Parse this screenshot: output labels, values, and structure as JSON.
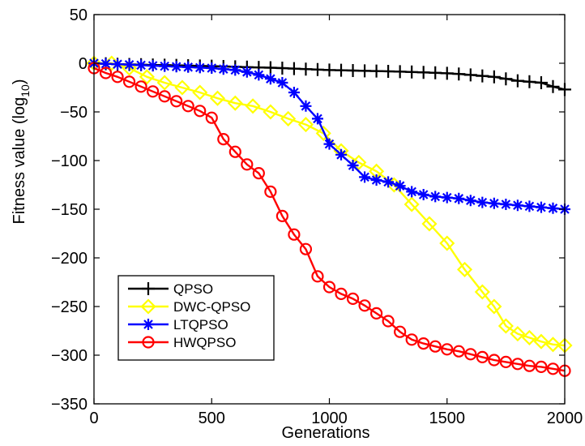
{
  "chart_data": {
    "type": "line",
    "title": "",
    "xlabel": "Generations",
    "ylabel": "Fitness value (log",
    "ylabel_subscript": "10",
    "ylabel_suffix": ")",
    "xlim": [
      0,
      2000
    ],
    "ylim": [
      -350,
      50
    ],
    "xticks": [
      0,
      500,
      1000,
      1500,
      2000
    ],
    "yticks": [
      50,
      0,
      -50,
      -100,
      -150,
      -200,
      -250,
      -300,
      -350
    ],
    "grid": false,
    "legend_placement": "lower-left",
    "series": [
      {
        "name": "QPSO",
        "color": "#000000",
        "marker": "plus",
        "x": [
          0,
          50,
          100,
          150,
          200,
          250,
          300,
          350,
          400,
          450,
          500,
          550,
          600,
          650,
          700,
          750,
          800,
          850,
          900,
          950,
          1000,
          1050,
          1100,
          1150,
          1200,
          1250,
          1300,
          1350,
          1400,
          1450,
          1500,
          1550,
          1600,
          1650,
          1700,
          1750,
          1800,
          1850,
          1900,
          1950,
          2000
        ],
        "y": [
          0,
          -0.5,
          -1,
          -1.2,
          -1.5,
          -1.8,
          -2,
          -2.2,
          -2.5,
          -2.8,
          -3,
          -3.3,
          -3.6,
          -4,
          -4.3,
          -4.6,
          -5,
          -5.5,
          -6,
          -6.5,
          -7,
          -7.2,
          -7.5,
          -7.8,
          -8,
          -8.3,
          -8.6,
          -9,
          -9.4,
          -9.8,
          -10.3,
          -11,
          -12,
          -13,
          -14,
          -16,
          -18,
          -19,
          -20,
          -24,
          -27
        ]
      },
      {
        "name": "DWC-QPSO",
        "color": "#ffff00",
        "marker": "diamond",
        "x": [
          0,
          75,
          150,
          225,
          300,
          375,
          450,
          525,
          600,
          675,
          750,
          825,
          900,
          975,
          1050,
          1125,
          1200,
          1275,
          1350,
          1425,
          1500,
          1575,
          1650,
          1700,
          1750,
          1800,
          1850,
          1900,
          1950,
          2000
        ],
        "y": [
          0,
          0,
          -5,
          -14,
          -20,
          -25,
          -30,
          -36,
          -41,
          -44,
          -50,
          -57,
          -63,
          -72,
          -90,
          -102,
          -111,
          -125,
          -145,
          -165,
          -185,
          -212,
          -235,
          -250,
          -270,
          -278,
          -282,
          -286,
          -289,
          -290
        ]
      },
      {
        "name": "LTQPSO",
        "color": "#0000ff",
        "marker": "star",
        "x": [
          0,
          50,
          100,
          150,
          200,
          250,
          300,
          350,
          400,
          450,
          500,
          550,
          600,
          650,
          700,
          750,
          800,
          850,
          900,
          950,
          1000,
          1050,
          1100,
          1150,
          1200,
          1250,
          1300,
          1350,
          1400,
          1450,
          1500,
          1550,
          1600,
          1650,
          1700,
          1750,
          1800,
          1850,
          1900,
          1950,
          2000
        ],
        "y": [
          0,
          -0.5,
          -1,
          -1.5,
          -2,
          -2.5,
          -3,
          -3.5,
          -4,
          -4.5,
          -5,
          -6,
          -7,
          -9,
          -12,
          -16,
          -20,
          -30,
          -44,
          -57,
          -83,
          -94,
          -105,
          -117,
          -120,
          -122,
          -126,
          -132,
          -135,
          -137,
          -138,
          -139,
          -141,
          -143,
          -144,
          -145,
          -146,
          -147,
          -148,
          -149,
          -150
        ]
      },
      {
        "name": "HWQPSO",
        "color": "#ff0000",
        "marker": "circle",
        "x": [
          0,
          50,
          100,
          150,
          200,
          250,
          300,
          350,
          400,
          450,
          500,
          550,
          600,
          650,
          700,
          750,
          800,
          850,
          900,
          950,
          1000,
          1050,
          1100,
          1150,
          1200,
          1250,
          1300,
          1350,
          1400,
          1450,
          1500,
          1550,
          1600,
          1650,
          1700,
          1750,
          1800,
          1850,
          1900,
          1950,
          2000
        ],
        "y": [
          -5,
          -10,
          -14,
          -19,
          -24,
          -29,
          -34,
          -39,
          -44,
          -49,
          -56,
          -78,
          -91,
          -104,
          -113,
          -132,
          -157,
          -176,
          -191,
          -219,
          -230,
          -237,
          -242,
          -249,
          -257,
          -265,
          -276,
          -284,
          -288,
          -291,
          -294,
          -296,
          -299,
          -302,
          -305,
          -307,
          -309,
          -311,
          -312,
          -314,
          -316
        ]
      }
    ]
  }
}
